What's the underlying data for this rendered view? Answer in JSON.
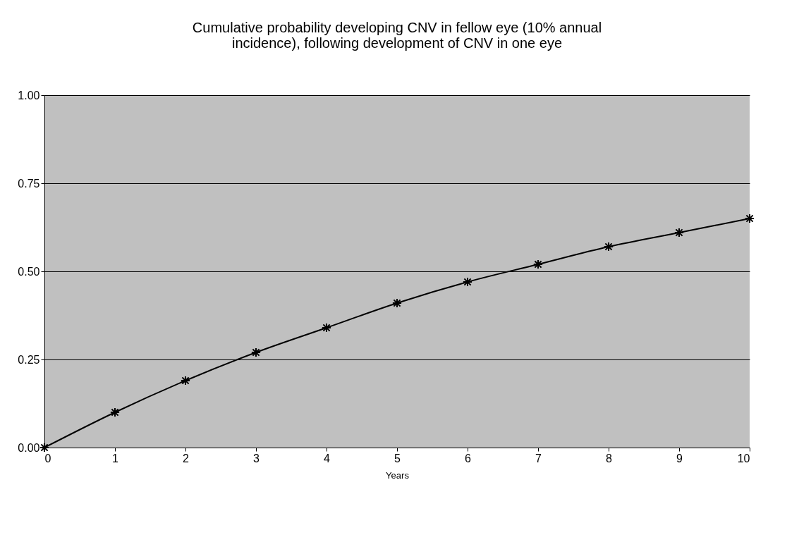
{
  "chart_data": {
    "type": "line",
    "title": [
      "Cumulative probability developing CNV in fellow eye (10% annual",
      "incidence), following development of CNV in one eye"
    ],
    "xlabel": "Years",
    "x": [
      0,
      1,
      2,
      3,
      4,
      5,
      6,
      7,
      8,
      9,
      10
    ],
    "series": [
      {
        "color": "#000000",
        "values": [
          0,
          0.1,
          0.19,
          0.27,
          0.34,
          0.41,
          0.47,
          0.52,
          0.57,
          0.61,
          0.65
        ]
      }
    ],
    "xlim": [
      0,
      10
    ],
    "xticks": [
      0,
      1,
      2,
      3,
      4,
      5,
      6,
      7,
      8,
      9,
      10
    ],
    "ylim": [
      0,
      1
    ],
    "yticks": [
      {
        "value": 0,
        "label": "0.00"
      },
      {
        "value": 0.25,
        "label": "0.25"
      },
      {
        "value": 0.5,
        "label": "0.50"
      },
      {
        "value": 0.75,
        "label": "0.75"
      },
      {
        "value": 1,
        "label": "1.00"
      }
    ],
    "grid": "y",
    "marker": "cross",
    "line_style": "solid"
  }
}
